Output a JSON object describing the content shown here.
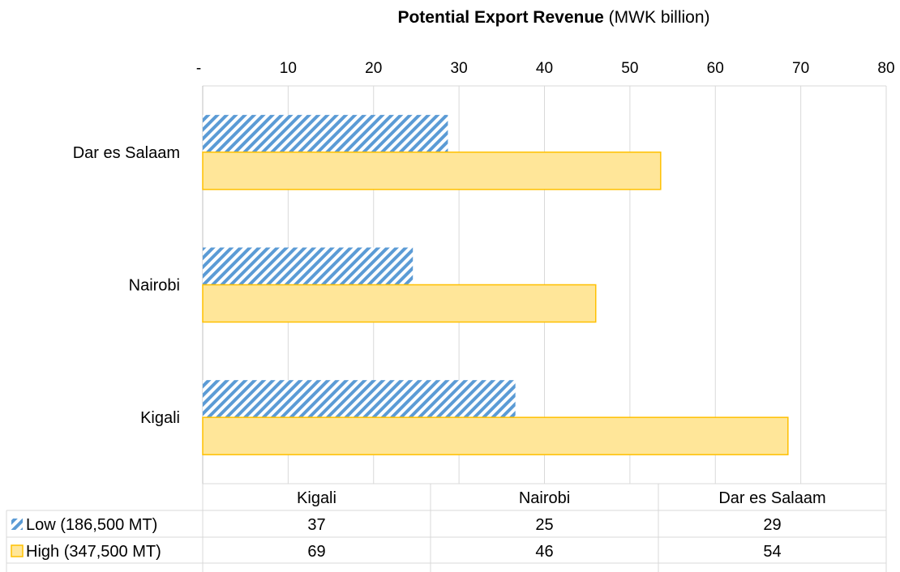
{
  "chart_data": {
    "type": "bar",
    "orientation": "horizontal",
    "title_bold": "Potential Export Revenue",
    "title_rest": " (MWK billion)",
    "axis_position": "top",
    "ticks": [
      "-",
      "10 ",
      "20 ",
      "30 ",
      "40 ",
      "50 ",
      "60 ",
      "70 ",
      "80 "
    ],
    "xlim": [
      0,
      80
    ],
    "gridlines": true,
    "categories_top_to_bottom": [
      "Dar es Salaam",
      "Nairobi",
      "Kigali"
    ],
    "table_columns": [
      "Kigali",
      "Nairobi",
      "Dar es Salaam"
    ],
    "series": [
      {
        "name": "Low (186,500 MT)",
        "color": "#5B9BD5",
        "pattern": "diagonal-stripes",
        "values": {
          "Kigali": 36.6,
          "Nairobi": 24.6,
          "Dar es Salaam": 28.7
        },
        "table_labels": [
          "37 ",
          "25 ",
          "29 "
        ]
      },
      {
        "name": "High (347,500 MT)",
        "color": "#FFE699",
        "border_color": "#FFC000",
        "pattern": "solid",
        "values": {
          "Kigali": 68.5,
          "Nairobi": 46.0,
          "Dar es Salaam": 53.6
        },
        "table_labels": [
          "69 ",
          "46 ",
          "54 "
        ]
      }
    ]
  }
}
